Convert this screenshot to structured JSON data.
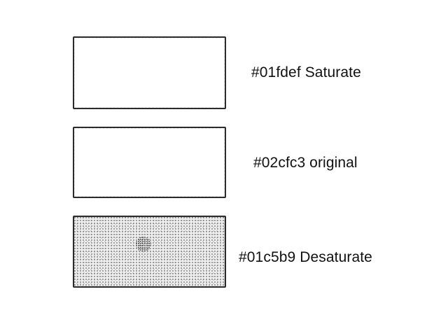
{
  "swatches": [
    {
      "label": "#01fdef Saturate"
    },
    {
      "label": "#02cfc3 original"
    },
    {
      "label": "#01c5b9 Desaturate"
    }
  ]
}
